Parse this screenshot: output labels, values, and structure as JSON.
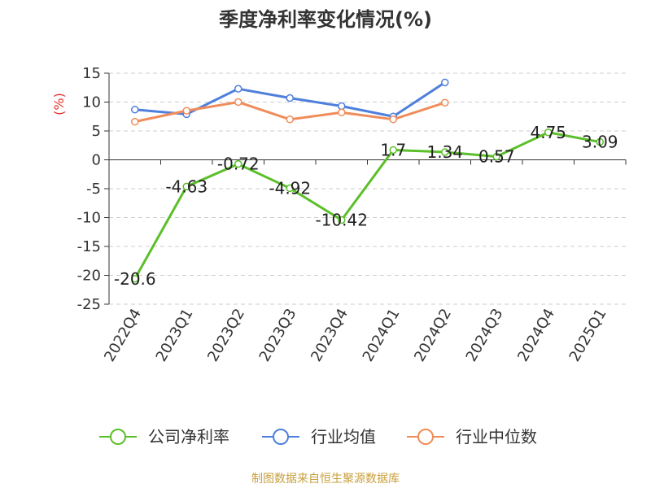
{
  "title": "季度净利率变化情况(%)",
  "source_note": "制图数据来自恒生聚源数据库",
  "colors": {
    "grid": "#cccccc",
    "axis": "#333333",
    "ylabel": "#e0312b"
  },
  "chart_data": {
    "type": "line",
    "title": "季度净利率变化情况(%)",
    "ylabel": "(%)",
    "xlabel": "",
    "ylim": [
      -25,
      15
    ],
    "yticks": [
      15,
      10,
      5,
      0,
      -5,
      -10,
      -15,
      -20,
      -25
    ],
    "categories": [
      "2022Q4",
      "2023Q1",
      "2023Q2",
      "2023Q3",
      "2023Q4",
      "2024Q1",
      "2024Q2",
      "2024Q3",
      "2024Q4",
      "2025Q1"
    ],
    "grid": true,
    "legend_position": "bottom",
    "series": [
      {
        "name": "公司净利率",
        "color": "#5cbf2a",
        "values": [
          -20.6,
          -4.63,
          -0.72,
          -4.92,
          -10.42,
          1.7,
          1.34,
          0.57,
          4.75,
          3.09
        ],
        "labels": [
          "-20.6",
          "-4.63",
          "-0.72",
          "-4.92",
          "-10.42",
          "1.7",
          "1.34",
          "0.57",
          "4.75",
          "3.09"
        ]
      },
      {
        "name": "行业均值",
        "color": "#4f7fdc",
        "values": [
          8.7,
          7.9,
          12.3,
          10.7,
          9.3,
          7.5,
          13.4,
          null,
          null,
          null
        ]
      },
      {
        "name": "行业中位数",
        "color": "#f08c5a",
        "values": [
          6.6,
          8.5,
          10.0,
          7.0,
          8.2,
          7.0,
          9.9,
          null,
          null,
          null
        ]
      }
    ]
  }
}
